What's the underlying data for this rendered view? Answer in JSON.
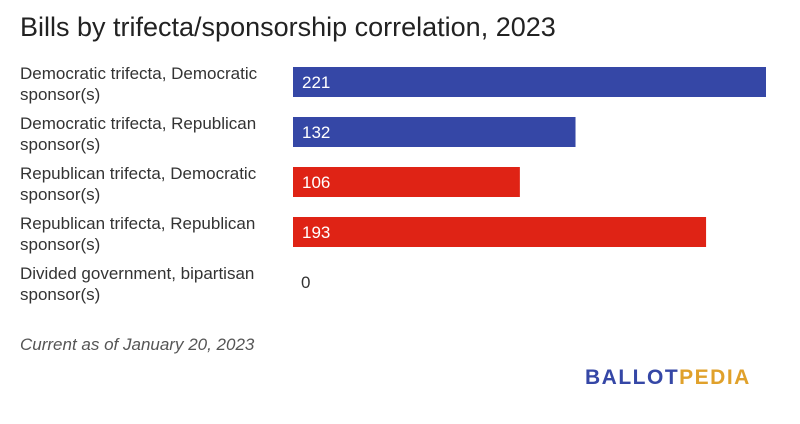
{
  "chart_data": {
    "type": "bar",
    "orientation": "horizontal",
    "title": "Bills by trifecta/sponsorship correlation, 2023",
    "categories": [
      [
        "Democratic trifecta, Democratic",
        "sponsor(s)"
      ],
      [
        "Democratic trifecta, Republican",
        "sponsor(s)"
      ],
      [
        "Republican trifecta, Democratic",
        "sponsor(s)"
      ],
      [
        "Republican trifecta, Republican",
        "sponsor(s)"
      ],
      [
        "Divided government, bipartisan",
        "sponsor(s)"
      ]
    ],
    "values": [
      221,
      132,
      106,
      193,
      0
    ],
    "colors": [
      "#3547a6",
      "#3547a6",
      "#df2315",
      "#df2315",
      "#3547a6"
    ],
    "xlim": [
      0,
      221
    ],
    "grid": false,
    "xlabel": "",
    "ylabel": ""
  },
  "footer": {
    "note": "Current as of January 20, 2023",
    "logo_part1": "BALLOT",
    "logo_part2": "PEDIA"
  }
}
